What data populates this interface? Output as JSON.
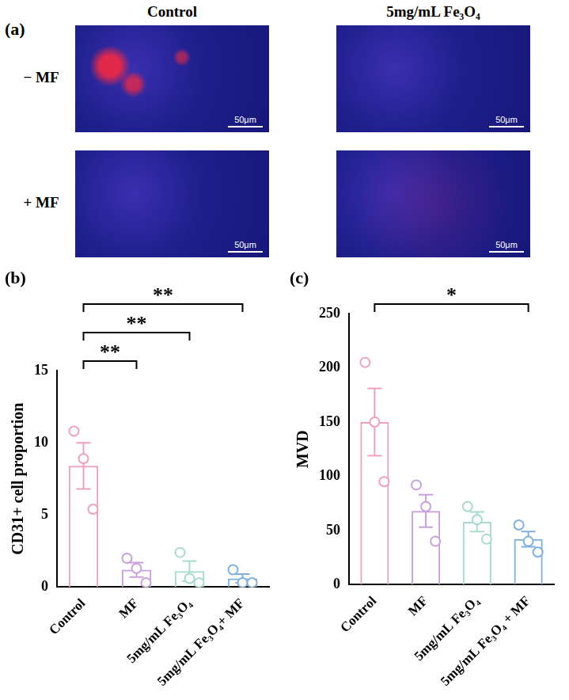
{
  "panel_a": {
    "letter": "(a)",
    "columns": [
      "Control",
      "5mg/mL Fe₃O₄"
    ],
    "rows": [
      "− MF",
      "+ MF"
    ],
    "scale_bar": "50μm"
  },
  "chart_data": [
    {
      "panel": "(b)",
      "type": "bar",
      "y_label": "CD31+ cell proportion",
      "categories": [
        "Control",
        "MF",
        "5mg/mL Fe₃O₄",
        "5mg/mL Fe₃O₄+ MF"
      ],
      "values": [
        8.4,
        1.2,
        1.1,
        0.6
      ],
      "errors": [
        1.6,
        0.5,
        0.7,
        0.3
      ],
      "points": [
        [
          10.8,
          8.9,
          5.4
        ],
        [
          2.0,
          1.3,
          0.3
        ],
        [
          2.4,
          0.6,
          0.3
        ],
        [
          1.2,
          0.3,
          0.3
        ]
      ],
      "colors": [
        "#f0a0bc",
        "#c9a0dc",
        "#a8dcc8",
        "#7fb0e0"
      ],
      "ylim": [
        0,
        15
      ],
      "yticks": [
        0,
        5,
        10,
        15
      ],
      "grid": false,
      "annotations": [
        {
          "from": "Control",
          "to": "MF",
          "label": "**"
        },
        {
          "from": "Control",
          "to": "5mg/mL Fe₃O₄",
          "label": "**"
        },
        {
          "from": "Control",
          "to": "5mg/mL Fe₃O₄+ MF",
          "label": "**"
        }
      ]
    },
    {
      "panel": "(c)",
      "type": "bar",
      "y_label": "MVD",
      "categories": [
        "Control",
        "MF",
        "5mg/mL Fe₃O₄",
        "5mg/mL Fe₃O₄ + MF"
      ],
      "values": [
        150,
        68,
        58,
        42
      ],
      "errors": [
        31,
        15,
        9,
        7
      ],
      "points": [
        [
          205,
          150,
          95
        ],
        [
          92,
          72,
          40
        ],
        [
          72,
          60,
          42
        ],
        [
          55,
          40,
          30
        ]
      ],
      "colors": [
        "#f0a0bc",
        "#c9a0dc",
        "#a8dcc8",
        "#7fb0e0"
      ],
      "ylim": [
        0,
        250
      ],
      "yticks": [
        0,
        50,
        100,
        150,
        200,
        250
      ],
      "grid": false,
      "annotations": [
        {
          "from": "Control",
          "to": "5mg/mL Fe₃O₄ + MF",
          "label": "*"
        }
      ]
    }
  ]
}
